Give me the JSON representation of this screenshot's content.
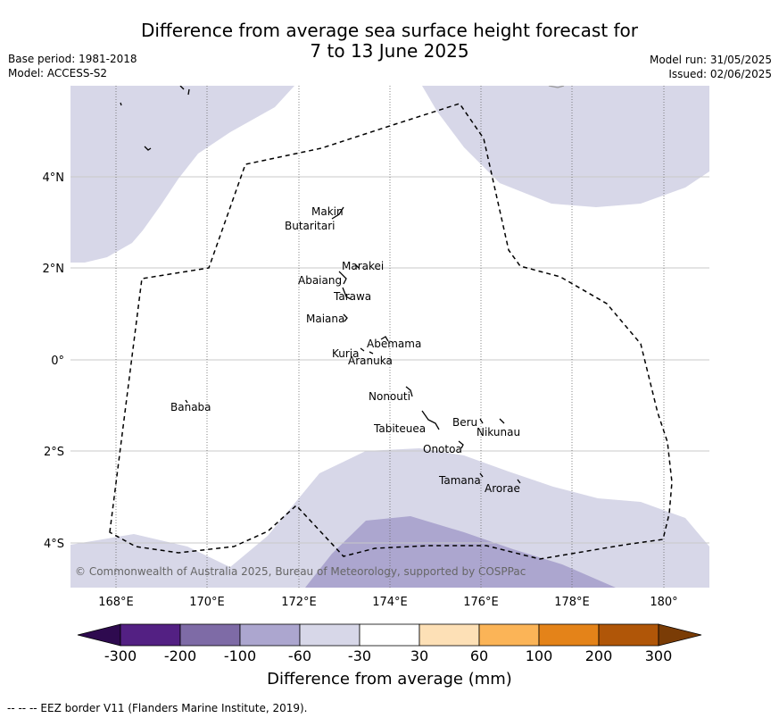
{
  "header": {
    "title_line1": "Difference from average sea surface height forecast for",
    "title_line2": "7 to 13 June 2025",
    "base_period": "Base period: 1981-2018",
    "model": "Model: ACCESS-S2",
    "model_run": "Model run: 31/05/2025",
    "issued": "Issued: 02/06/2025"
  },
  "map": {
    "lon_ticks": [
      "168°E",
      "170°E",
      "172°E",
      "174°E",
      "176°E",
      "178°E",
      "180°"
    ],
    "lat_ticks": [
      "4°N",
      "2°N",
      "0°",
      "2°S",
      "4°S"
    ],
    "copyright": "© Commonwealth of Australia 2025, Bureau of Meteorology, supported by COSPPac",
    "islands": [
      "Makin",
      "Butaritari",
      "Marakei",
      "Abaiang",
      "Tarawa",
      "Maiana",
      "Abemama",
      "Kuria",
      "Aranuka",
      "Banaba",
      "Nonouti",
      "Tabiteuea",
      "Beru",
      "Nikunau",
      "Onotoa",
      "Tamana",
      "Arorae"
    ]
  },
  "legend": {
    "title": "Difference from average (mm)",
    "ticks": [
      "-300",
      "-200",
      "-100",
      "-60",
      "-30",
      "30",
      "60",
      "100",
      "200",
      "300"
    ],
    "colors": [
      "#2e0a4f",
      "#532083",
      "#7e6ba6",
      "#aca6cf",
      "#d7d7e8",
      "#ffffff",
      "#fde0b6",
      "#fbb457",
      "#e48319",
      "#b05608",
      "#7a3c06"
    ]
  },
  "footnote": "--  --  -- EEZ border V11 (Flanders Marine Institute, 2019)."
}
